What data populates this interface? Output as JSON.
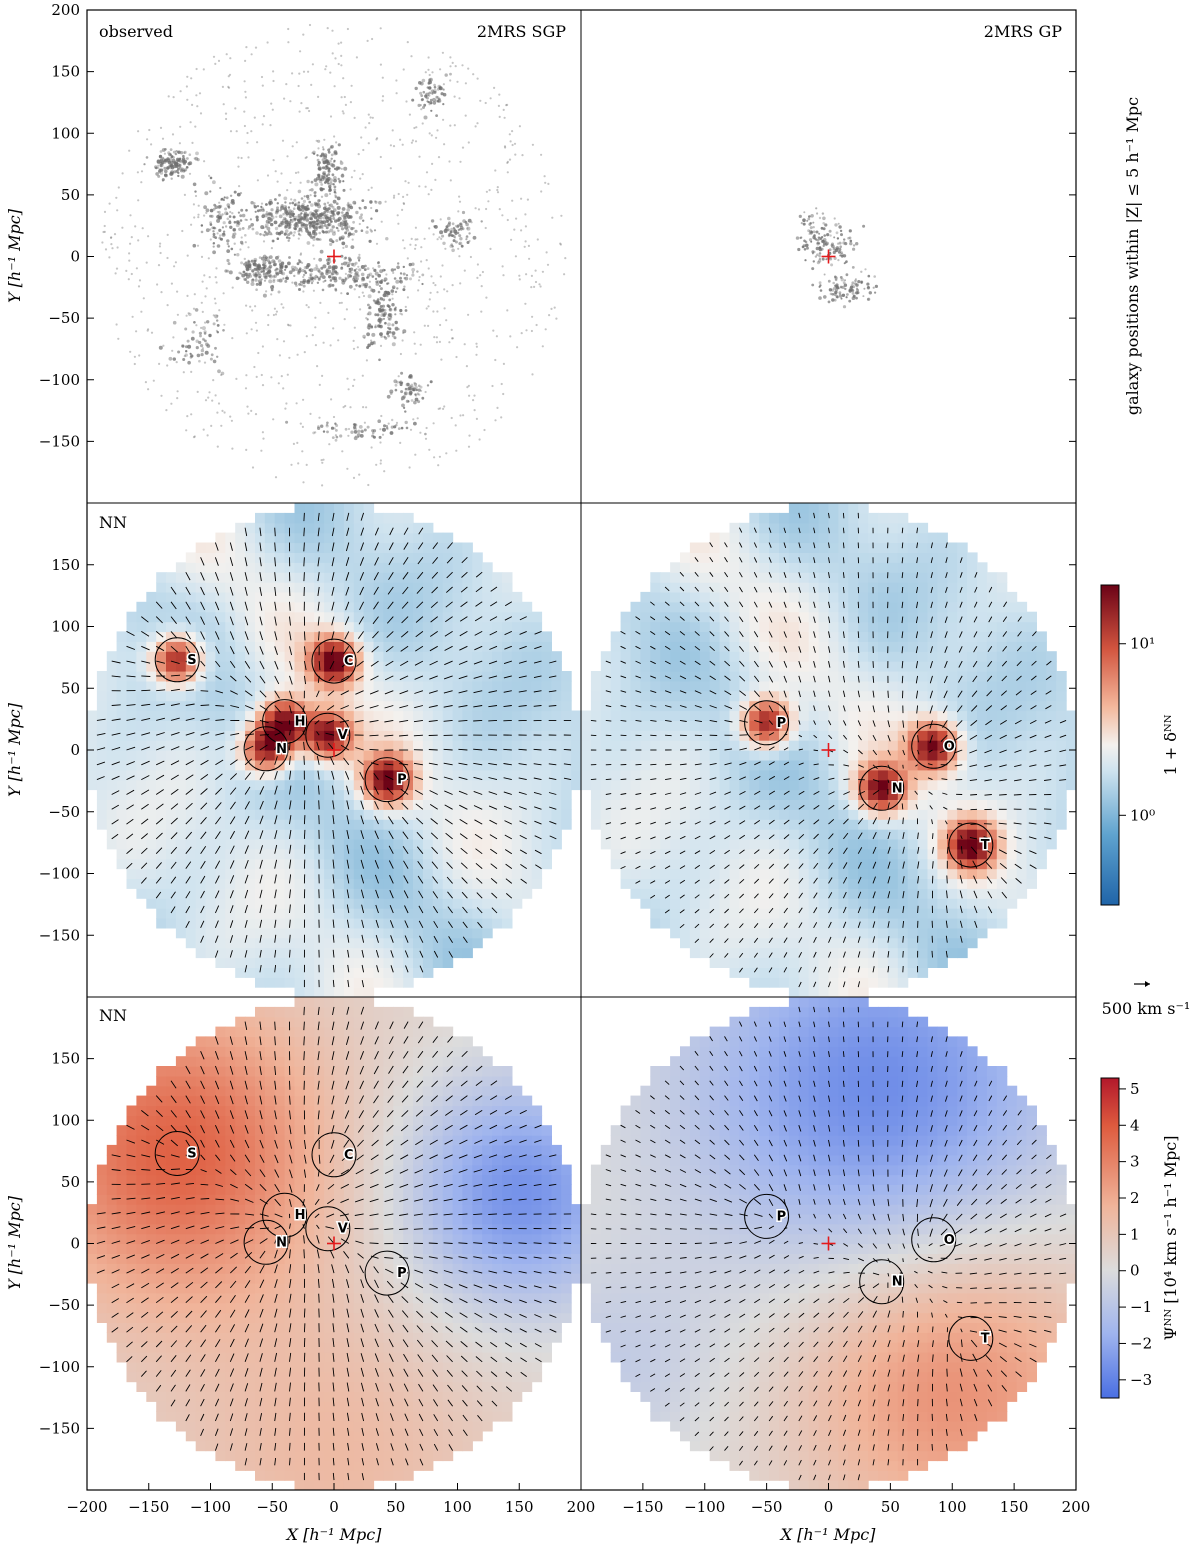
{
  "figure": {
    "columns": [
      {
        "header": "2MRS SGP"
      },
      {
        "header": "2MRS GP"
      }
    ],
    "rows": [
      {
        "tag": "observed",
        "kind": "galaxies",
        "right_label": "galaxy positions within |Z| ≤ 5 h⁻¹ Mpc"
      },
      {
        "tag": "NN",
        "kind": "density",
        "right_label": "1 + δᴺᴺ"
      },
      {
        "tag": "NN",
        "kind": "potential",
        "right_label": "Ψᴺᴺ [10⁴ km s⁻¹ h⁻¹ Mpc]"
      }
    ],
    "ylabel": "Y [h⁻¹ Mpc]",
    "xlabel": "X [h⁻¹ Mpc]",
    "velocity_scale": "500 km s⁻¹",
    "colors": {
      "galaxy_points": "#6e6e6e",
      "observer_marker": "#e41a1c",
      "density_low": "#1f64a8",
      "density_mid": "#f4f1ee",
      "density_high": "#7a0418",
      "potential_low": "#4a6fe3",
      "potential_mid": "#dcdcdc",
      "potential_high": "#c8331d"
    }
  },
  "chart_data": [
    {
      "type": "scatter",
      "panel": "observed 2MRS SGP",
      "xlim": [
        -200,
        200
      ],
      "ylim": [
        -200,
        200
      ],
      "xticks": [
        -200,
        -150,
        -100,
        -50,
        0,
        50,
        100,
        150,
        200
      ],
      "yticks": [
        -150,
        -100,
        -50,
        0,
        50,
        100,
        150,
        200
      ],
      "observer": [
        0,
        0
      ],
      "description_points": "galaxy positions within |Z| ≤ 5 h⁻¹ Mpc"
    },
    {
      "type": "scatter",
      "panel": "observed 2MRS GP",
      "xlim": [
        -200,
        200
      ],
      "ylim": [
        -200,
        200
      ],
      "observer": [
        0,
        0
      ]
    },
    {
      "type": "heatmap",
      "panel": "NN 2MRS SGP density",
      "xlim": [
        -200,
        200
      ],
      "ylim": [
        -200,
        200
      ],
      "clusters": [
        {
          "label": "S",
          "x": -127,
          "y": 73
        },
        {
          "label": "C",
          "x": 0,
          "y": 72
        },
        {
          "label": "H",
          "x": -40,
          "y": 23
        },
        {
          "label": "V",
          "x": -5,
          "y": 12
        },
        {
          "label": "N",
          "x": -55,
          "y": 1
        },
        {
          "label": "P",
          "x": 43,
          "y": -24
        }
      ]
    },
    {
      "type": "heatmap",
      "panel": "NN 2MRS GP density",
      "xlim": [
        -200,
        200
      ],
      "ylim": [
        -200,
        200
      ],
      "colorbar": {
        "label": "1 + δᴺᴺ",
        "scale": "log",
        "ticks": [
          1,
          10
        ],
        "tick_labels": [
          "10⁰",
          "10¹"
        ],
        "range": [
          0.3,
          22
        ]
      },
      "clusters": [
        {
          "label": "P",
          "x": -50,
          "y": 22
        },
        {
          "label": "O",
          "x": 85,
          "y": 3
        },
        {
          "label": "N",
          "x": 43,
          "y": -31
        },
        {
          "label": "T",
          "x": 115,
          "y": -77
        }
      ]
    },
    {
      "type": "heatmap",
      "panel": "NN 2MRS SGP potential",
      "xlim": [
        -200,
        200
      ],
      "ylim": [
        -200,
        200
      ],
      "clusters": [
        {
          "label": "S",
          "x": -127,
          "y": 73
        },
        {
          "label": "C",
          "x": 0,
          "y": 72
        },
        {
          "label": "H",
          "x": -40,
          "y": 23
        },
        {
          "label": "V",
          "x": -5,
          "y": 12
        },
        {
          "label": "N",
          "x": -55,
          "y": 1
        },
        {
          "label": "P",
          "x": 43,
          "y": -24
        }
      ]
    },
    {
      "type": "heatmap",
      "panel": "NN 2MRS GP potential",
      "xlim": [
        -200,
        200
      ],
      "ylim": [
        -200,
        200
      ],
      "colorbar": {
        "label": "Ψᴺᴺ [10⁴ km s⁻¹ h⁻¹ Mpc]",
        "ticks": [
          -3,
          -2,
          -1,
          0,
          1,
          2,
          3,
          4,
          5
        ],
        "tick_labels": [
          "−3",
          "−2",
          "−1",
          "0",
          "1",
          "2",
          "3",
          "4",
          "5"
        ],
        "range": [
          -3.5,
          5.3
        ]
      },
      "clusters": [
        {
          "label": "P",
          "x": -50,
          "y": 22
        },
        {
          "label": "O",
          "x": 85,
          "y": 3
        },
        {
          "label": "N",
          "x": 43,
          "y": -31
        },
        {
          "label": "T",
          "x": 115,
          "y": -77
        }
      ]
    }
  ]
}
